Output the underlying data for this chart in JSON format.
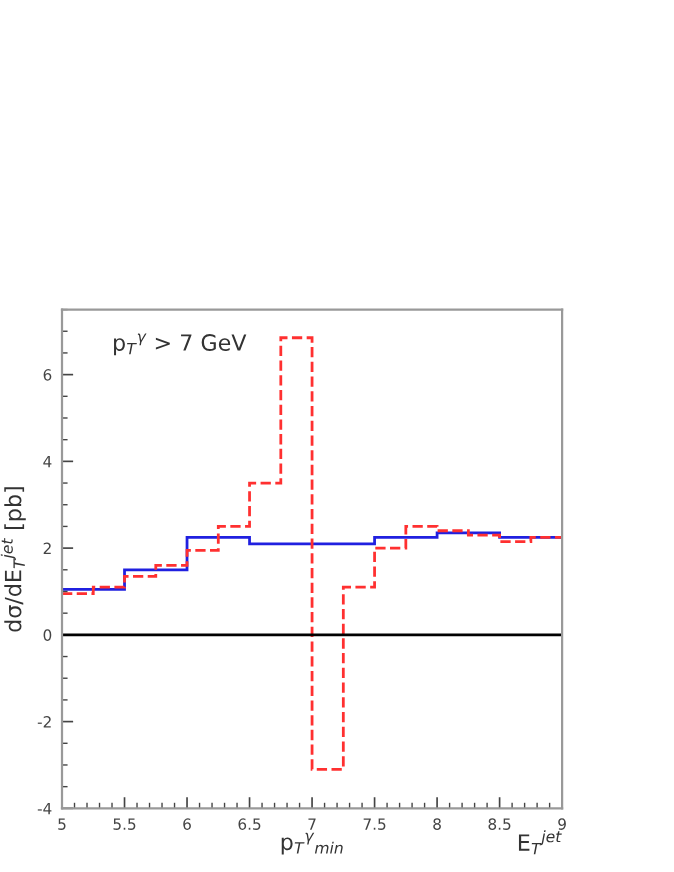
{
  "chart_data": {
    "type": "histogram",
    "xlabel": "p$_{T}$$^{γ}$$_{min}$",
    "ylabel": "dσ/dE$_{T}$$^{jet}$ [pb]",
    "annotations": [
      "p$_{T}$$^{γ}$ > 7 GeV",
      "E$_{T}$$^{jet}$"
    ],
    "xlim": [
      5,
      9
    ],
    "ylim": [
      -4,
      7.5
    ],
    "xticks": [
      5,
      5.5,
      6,
      6.5,
      7,
      7.5,
      8,
      8.5,
      9
    ],
    "yticks": [
      -4,
      -2,
      0,
      2,
      4,
      6
    ],
    "ref_lines": [
      {
        "axis": "y",
        "value": 0,
        "color": "#000000"
      }
    ],
    "bins": [
      5,
      5.25,
      5.5,
      5.75,
      6,
      6.25,
      6.5,
      6.75,
      7,
      7.25,
      7.5,
      7.75,
      8,
      8.25,
      8.5,
      8.75,
      9
    ],
    "series": [
      {
        "color": "#2020e0",
        "line_style": "solid",
        "values": [
          1.05,
          1.05,
          1.5,
          1.5,
          2.25,
          2.25,
          2.1,
          2.1,
          2.1,
          2.1,
          2.25,
          2.25,
          2.35,
          2.35,
          2.25,
          2.25
        ]
      },
      {
        "color": "#ff3030",
        "line_style": "dashed",
        "values": [
          0.95,
          1.1,
          1.35,
          1.6,
          1.95,
          2.5,
          3.5,
          6.85,
          -3.1,
          1.1,
          2.0,
          2.5,
          2.4,
          2.3,
          2.15,
          2.25
        ]
      }
    ]
  }
}
